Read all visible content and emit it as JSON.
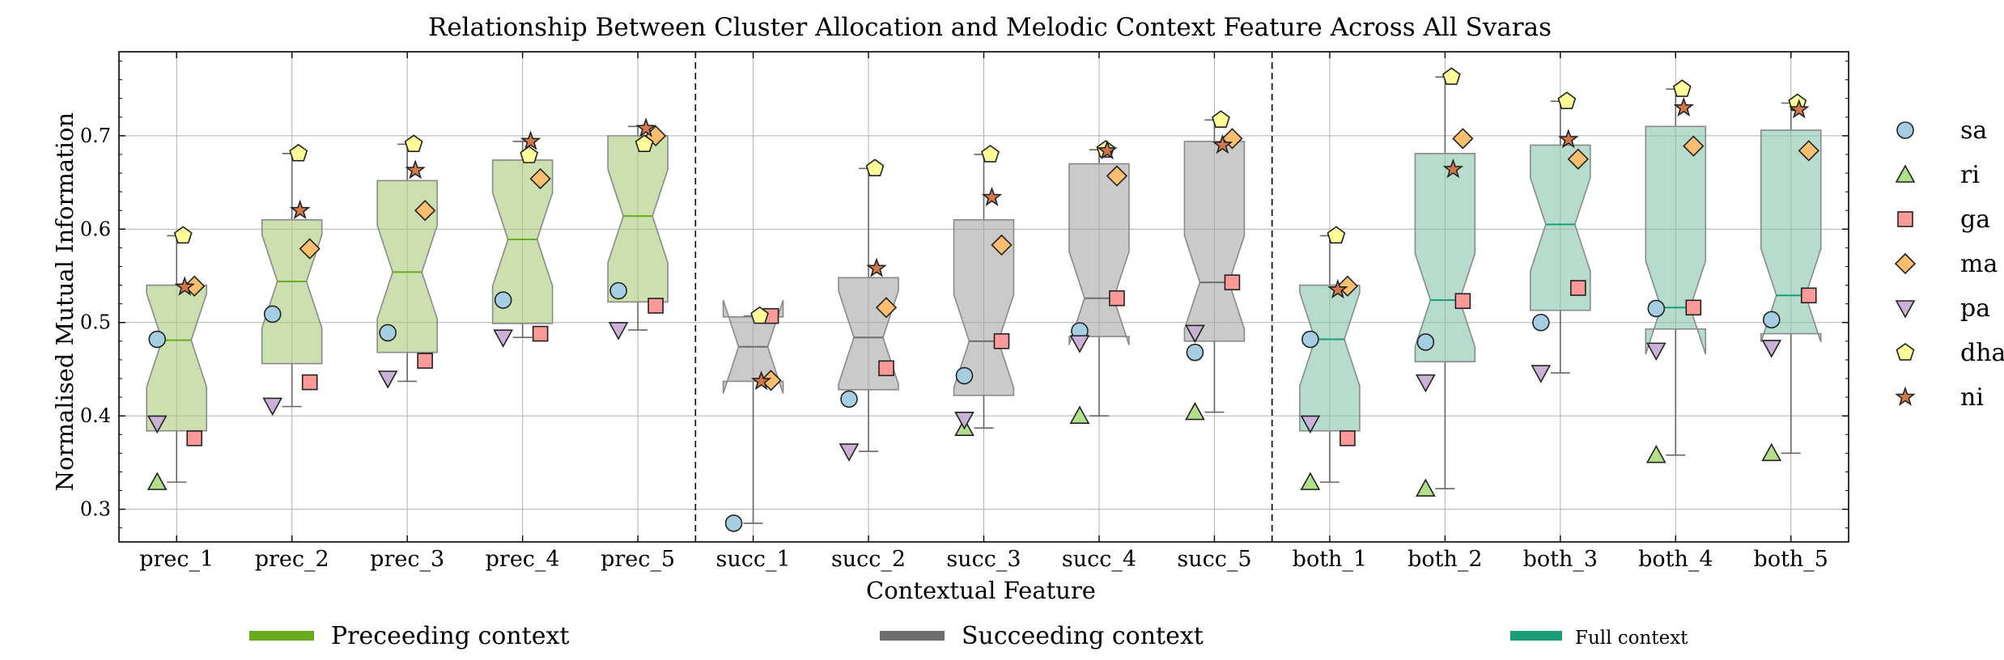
{
  "chart_data": {
    "type": "box",
    "title": "Relationship Between Cluster Allocation and Melodic Context Feature Across All Svaras",
    "xlabel": "Contextual Feature",
    "ylabel": "Normalised Mutual Information",
    "ylim": [
      0.265,
      0.79
    ],
    "yticks": [
      0.3,
      0.4,
      0.5,
      0.6,
      0.7
    ],
    "grid": true,
    "categories": [
      "prec_1",
      "prec_2",
      "prec_3",
      "prec_4",
      "prec_5",
      "succ_1",
      "succ_2",
      "succ_3",
      "succ_4",
      "succ_5",
      "both_1",
      "both_2",
      "both_3",
      "both_4",
      "both_5"
    ],
    "group_separators_after": [
      "prec_5",
      "succ_5"
    ],
    "groups": [
      {
        "name": "Preceeding context",
        "categories": [
          "prec_1",
          "prec_2",
          "prec_3",
          "prec_4",
          "prec_5"
        ],
        "fill": "#a9c97a",
        "line": "#6aab1e"
      },
      {
        "name": "Succeeding context",
        "categories": [
          "succ_1",
          "succ_2",
          "succ_3",
          "succ_4",
          "succ_5"
        ],
        "fill": "#a6a6a6",
        "line": "#6e6e6e"
      },
      {
        "name": "Full context",
        "categories": [
          "both_1",
          "both_2",
          "both_3",
          "both_4",
          "both_5"
        ],
        "fill": "#86c5ae",
        "line": "#1b9e77"
      }
    ],
    "boxes": [
      {
        "q1": 0.384,
        "median": 0.481,
        "q3": 0.54,
        "whislo": 0.329,
        "whishi": 0.593
      },
      {
        "q1": 0.456,
        "median": 0.544,
        "q3": 0.61,
        "whislo": 0.41,
        "whishi": 0.681
      },
      {
        "q1": 0.468,
        "median": 0.554,
        "q3": 0.652,
        "whislo": 0.437,
        "whishi": 0.691
      },
      {
        "q1": 0.499,
        "median": 0.589,
        "q3": 0.674,
        "whislo": 0.484,
        "whishi": 0.694
      },
      {
        "q1": 0.522,
        "median": 0.614,
        "q3": 0.7,
        "whislo": 0.492,
        "whishi": 0.71
      },
      {
        "q1": 0.437,
        "median": 0.474,
        "q3": 0.506,
        "whislo": 0.285,
        "whishi": 0.507
      },
      {
        "q1": 0.428,
        "median": 0.484,
        "q3": 0.548,
        "whislo": 0.362,
        "whishi": 0.665
      },
      {
        "q1": 0.422,
        "median": 0.48,
        "q3": 0.61,
        "whislo": 0.387,
        "whishi": 0.68
      },
      {
        "q1": 0.485,
        "median": 0.526,
        "q3": 0.67,
        "whislo": 0.4,
        "whishi": 0.685
      },
      {
        "q1": 0.48,
        "median": 0.543,
        "q3": 0.694,
        "whislo": 0.404,
        "whishi": 0.717
      },
      {
        "q1": 0.384,
        "median": 0.482,
        "q3": 0.54,
        "whislo": 0.329,
        "whishi": 0.593
      },
      {
        "q1": 0.458,
        "median": 0.524,
        "q3": 0.681,
        "whislo": 0.322,
        "whishi": 0.763
      },
      {
        "q1": 0.513,
        "median": 0.605,
        "q3": 0.69,
        "whislo": 0.446,
        "whishi": 0.737
      },
      {
        "q1": 0.493,
        "median": 0.516,
        "q3": 0.71,
        "whislo": 0.358,
        "whishi": 0.75
      },
      {
        "q1": 0.488,
        "median": 0.529,
        "q3": 0.706,
        "whislo": 0.36,
        "whishi": 0.735
      }
    ],
    "series": [
      {
        "name": "sa",
        "marker": "circle",
        "color": "#a6cee3",
        "values": [
          0.482,
          0.509,
          0.489,
          0.524,
          0.534,
          0.285,
          0.418,
          0.443,
          0.491,
          0.468,
          0.482,
          0.479,
          0.5,
          0.515,
          0.503
        ]
      },
      {
        "name": "ri",
        "marker": "triangle-up",
        "color": "#b2df8a",
        "values": [
          0.329,
          null,
          null,
          null,
          null,
          null,
          null,
          0.387,
          0.4,
          0.404,
          0.329,
          0.322,
          null,
          0.358,
          0.36
        ]
      },
      {
        "name": "ga",
        "marker": "square",
        "color": "#fb9a99",
        "values": [
          0.376,
          0.436,
          0.459,
          0.488,
          0.518,
          0.507,
          0.451,
          0.48,
          0.526,
          0.543,
          0.376,
          0.523,
          0.537,
          0.516,
          0.529
        ]
      },
      {
        "name": "ma",
        "marker": "diamond",
        "color": "#fdbf6f",
        "values": [
          0.539,
          0.579,
          0.62,
          0.654,
          0.7,
          0.438,
          0.516,
          0.583,
          0.657,
          0.697,
          0.539,
          0.697,
          0.675,
          0.689,
          0.684
        ]
      },
      {
        "name": "pa",
        "marker": "triangle-down",
        "color": "#cab2d6",
        "values": [
          0.392,
          0.411,
          0.44,
          0.484,
          0.492,
          null,
          0.362,
          0.396,
          0.478,
          0.489,
          0.392,
          0.436,
          0.446,
          0.47,
          0.473
        ]
      },
      {
        "name": "dha",
        "marker": "pentagon",
        "color": "#ffff99",
        "values": [
          0.593,
          0.681,
          0.691,
          0.679,
          0.691,
          0.507,
          0.665,
          0.68,
          0.685,
          0.717,
          0.593,
          0.763,
          0.737,
          0.75,
          0.735
        ]
      },
      {
        "name": "ni",
        "marker": "star",
        "color": "#d2784a",
        "values": [
          0.538,
          0.62,
          0.663,
          0.694,
          0.708,
          0.437,
          0.558,
          0.634,
          0.684,
          0.69,
          0.535,
          0.664,
          0.696,
          0.73,
          0.728
        ]
      }
    ],
    "legend_position": "right",
    "group_legend_position": "bottom"
  }
}
